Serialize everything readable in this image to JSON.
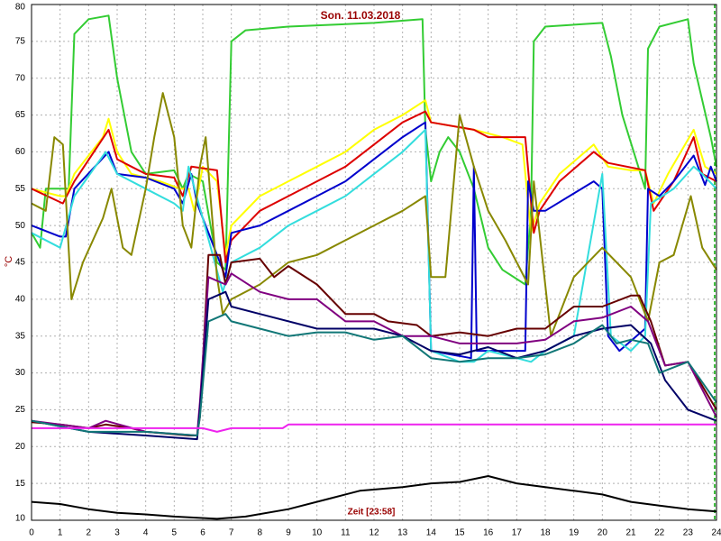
{
  "chart_data": {
    "type": "line",
    "title": "Son. 11.03.2018",
    "x_label": "Zeit [23:58]",
    "y_label": "°C",
    "xlim": [
      0,
      24
    ],
    "ylim": [
      10,
      80
    ],
    "xticks": [
      0,
      1,
      2,
      3,
      4,
      5,
      6,
      7,
      8,
      9,
      10,
      11,
      12,
      13,
      14,
      15,
      16,
      17,
      18,
      19,
      20,
      21,
      22,
      23,
      24
    ],
    "yticks": [
      10,
      15,
      20,
      25,
      30,
      35,
      40,
      45,
      50,
      55,
      60,
      65,
      70,
      75,
      80
    ],
    "grid": true,
    "series": [
      {
        "color": "#33cc33",
        "x": [
          0,
          0.3,
          0.5,
          1.3,
          1.5,
          2,
          2.7,
          3,
          3.5,
          4,
          5,
          5.3,
          5.5,
          6,
          6.5,
          6.8,
          7,
          7.5,
          9,
          12,
          13.7,
          13.8,
          14,
          14.3,
          14.6,
          15,
          15.5,
          16,
          16.5,
          17.3,
          17.5,
          17.6,
          18,
          20,
          20.3,
          20.7,
          21.5,
          21.6,
          22,
          23,
          23.2,
          23.8,
          24
        ],
        "values": [
          49,
          47,
          55,
          55,
          76,
          78,
          78.5,
          70,
          60,
          57,
          57.5,
          55,
          57,
          56,
          45,
          44,
          75,
          76.5,
          77,
          77.5,
          78,
          63,
          56,
          60,
          62,
          60,
          55,
          47,
          44,
          42,
          52,
          75,
          77,
          77.5,
          73,
          65,
          55,
          74,
          77,
          78,
          72,
          62,
          58
        ]
      },
      {
        "color": "#ffff00",
        "x": [
          0,
          1,
          1.2,
          1.5,
          2.5,
          2.7,
          3,
          3.5,
          4.5,
          5.2,
          5.5,
          5.7,
          6,
          6.5,
          6.8,
          7,
          8,
          9,
          10,
          11,
          12,
          13,
          13.8,
          14,
          15.5,
          16.5,
          17.2,
          17.5,
          17.8,
          18.5,
          19.7,
          20.2,
          21,
          21.5,
          21.8,
          22.3,
          23.2,
          23.6,
          24
        ],
        "values": [
          55,
          54,
          54,
          57,
          62,
          64.5,
          60,
          57,
          56,
          55,
          55,
          52,
          58,
          56,
          46,
          50,
          54,
          56,
          58,
          60,
          63,
          65,
          67,
          64,
          63,
          62,
          61,
          49,
          53,
          57,
          61,
          58,
          57.5,
          57.5,
          53,
          57,
          63,
          58,
          57
        ]
      },
      {
        "color": "#dd0000",
        "x": [
          0,
          1.1,
          1.5,
          2.7,
          3,
          3.5,
          4,
          5,
          5.3,
          5.6,
          6.5,
          6.8,
          7,
          8,
          9,
          10,
          11,
          12,
          13,
          13.8,
          14,
          15.5,
          16,
          17.3,
          17.6,
          17.8,
          18.5,
          19.7,
          20.2,
          21.5,
          21.8,
          22.5,
          23.2,
          23.5,
          24
        ],
        "values": [
          55,
          53,
          56,
          63,
          59,
          58,
          57,
          56.5,
          54,
          58,
          57.5,
          45,
          48,
          52,
          54,
          56,
          58,
          61,
          64,
          65.5,
          64,
          63,
          62,
          62,
          49,
          52,
          56,
          60,
          58.5,
          57.5,
          52,
          56,
          62,
          57,
          56
        ]
      },
      {
        "color": "#0000cc",
        "x": [
          0,
          1,
          1.2,
          1.5,
          2.7,
          3,
          4,
          5,
          5.3,
          5.6,
          5.8,
          6.8,
          7,
          8,
          9,
          10,
          11,
          12,
          13,
          13.8,
          14,
          15.4,
          15.5,
          15.6,
          17.3,
          17.4,
          17.6,
          18,
          19.7,
          20,
          20.2,
          20.6,
          21.5,
          21.6,
          22,
          22.5,
          23.2,
          23.6,
          23.8,
          24
        ],
        "values": [
          50,
          48.5,
          48.5,
          55,
          60,
          57,
          56.5,
          55,
          53,
          57,
          53,
          43,
          49,
          50,
          52,
          54,
          56,
          59,
          62,
          64,
          33,
          32,
          58,
          33,
          33,
          56,
          52,
          52,
          56,
          55,
          35,
          33,
          36,
          55,
          54,
          56,
          59.5,
          55.5,
          58,
          56
        ]
      },
      {
        "color": "#33dddd",
        "x": [
          0,
          1,
          1.5,
          2.6,
          3,
          4,
          5,
          5.3,
          5.5,
          6,
          6.7,
          7,
          8,
          9,
          10,
          11,
          12,
          13,
          13.8,
          14,
          15,
          15.5,
          16,
          17,
          17.5,
          18,
          19,
          20,
          20.3,
          21,
          21.5,
          21.7,
          22.5,
          23.2,
          23.5,
          24
        ],
        "values": [
          49,
          47,
          54,
          60,
          57,
          55,
          53,
          52,
          58,
          51,
          41,
          45,
          47,
          50,
          52,
          54,
          57,
          60,
          63,
          33,
          31.5,
          31.5,
          33,
          32,
          31.5,
          33,
          35,
          57,
          35,
          33,
          35,
          53,
          55,
          58,
          57,
          55
        ]
      },
      {
        "color": "#888800",
        "x": [
          0,
          0.5,
          0.8,
          1.1,
          1.4,
          1.8,
          2.5,
          2.8,
          3.2,
          3.5,
          4,
          4.3,
          4.6,
          5,
          5.3,
          5.6,
          5.9,
          6.1,
          6.5,
          6.7,
          7,
          8,
          9,
          10,
          11,
          12,
          13,
          13.8,
          14,
          14.5,
          15,
          15.5,
          16,
          16.6,
          17.4,
          17.6,
          18.2,
          19,
          20,
          20.5,
          21,
          21.6,
          22,
          22.5,
          23.1,
          23.5,
          24
        ],
        "values": [
          53,
          52,
          62,
          61,
          40,
          45,
          51,
          55,
          47,
          46,
          55,
          62,
          68,
          62,
          50,
          47,
          58,
          62,
          43,
          38,
          40,
          42,
          45,
          46,
          48,
          50,
          52,
          54,
          43,
          43,
          65,
          58,
          52,
          48,
          42,
          56,
          35,
          43,
          47,
          45,
          43,
          37,
          45,
          46,
          54,
          47,
          44
        ]
      },
      {
        "color": "#660000",
        "x": [
          0,
          1,
          2,
          2.6,
          3.5,
          4,
          5.5,
          5.8,
          5.9,
          6.2,
          6.6,
          6.8,
          7,
          8,
          8.5,
          9,
          10,
          11,
          12,
          12.5,
          13.5,
          14,
          15,
          16,
          17,
          18,
          19,
          20,
          21,
          21.3,
          21.7,
          22.2,
          23,
          24
        ],
        "values": [
          23.3,
          23,
          22.5,
          23,
          22.5,
          22,
          21.5,
          21.5,
          24,
          46,
          46,
          42,
          45,
          45.5,
          43,
          44.5,
          42,
          38,
          38,
          37,
          36.5,
          35,
          35.5,
          35,
          36,
          36,
          39,
          39,
          40.5,
          40.5,
          37,
          31,
          31.5,
          25
        ]
      },
      {
        "color": "#800080",
        "x": [
          0,
          2,
          2.6,
          4,
          5.8,
          5.9,
          6.2,
          6.8,
          7,
          8,
          9,
          10,
          11,
          12,
          13,
          14,
          15,
          17,
          18,
          19,
          20,
          21,
          21.6,
          22.2,
          23,
          24
        ],
        "values": [
          23.5,
          22.5,
          23.5,
          22,
          21.5,
          26,
          43,
          42,
          43.5,
          41,
          40,
          40,
          37,
          37,
          35,
          35,
          34,
          34,
          34.5,
          37,
          37.5,
          39,
          37,
          31,
          31.5,
          24
        ]
      },
      {
        "color": "#000066",
        "x": [
          0,
          2,
          4,
          5.8,
          5.9,
          6.2,
          6.8,
          7,
          8,
          10,
          12,
          13,
          14,
          15,
          16,
          17,
          18,
          19,
          20,
          21,
          21.7,
          22.2,
          23,
          24
        ],
        "values": [
          23.5,
          22,
          21.5,
          21,
          25,
          40,
          41,
          39,
          38,
          36,
          36,
          35,
          33,
          32.5,
          33.5,
          32,
          33,
          35,
          36,
          36.5,
          34,
          29,
          25,
          23.5
        ]
      },
      {
        "color": "#117777",
        "x": [
          0,
          2,
          4,
          5.8,
          5.9,
          6.2,
          6.8,
          7,
          8,
          9,
          10,
          11,
          12,
          13,
          14,
          15,
          16,
          17,
          18,
          19,
          20,
          20.5,
          21,
          21.6,
          22,
          23,
          24
        ],
        "values": [
          23.5,
          22,
          22,
          21.5,
          24,
          37,
          38,
          37,
          36,
          35,
          35.5,
          35.5,
          34.5,
          35,
          32,
          31.5,
          32,
          32,
          32.5,
          34,
          36.5,
          34,
          34.5,
          34,
          30,
          31.5,
          26
        ]
      },
      {
        "color": "#ee22ee",
        "x": [
          0,
          6,
          6.5,
          7,
          8.8,
          9,
          24
        ],
        "values": [
          22.5,
          22.5,
          22,
          22.5,
          22.5,
          23,
          23
        ]
      },
      {
        "color": "#000000",
        "x": [
          0,
          1,
          2,
          3,
          4,
          5,
          6.5,
          7.5,
          9,
          10.5,
          11.5,
          13,
          14,
          15,
          16,
          17,
          18,
          19,
          20,
          21,
          22,
          23,
          24
        ],
        "values": [
          12.5,
          12.2,
          11.5,
          11,
          10.8,
          10.5,
          10.2,
          10.5,
          11.5,
          13,
          14,
          14.5,
          15,
          15.2,
          16,
          15,
          14.5,
          14,
          13.5,
          12.5,
          12,
          11.5,
          11.2
        ]
      }
    ]
  }
}
